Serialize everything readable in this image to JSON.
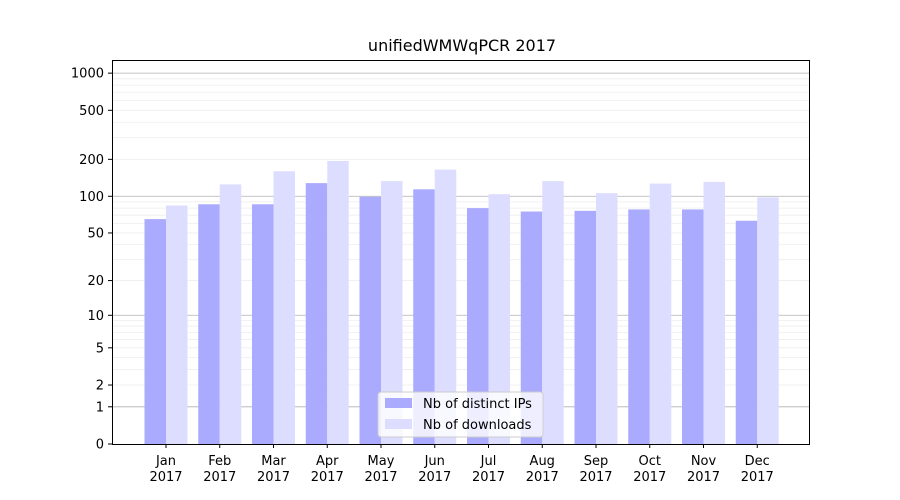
{
  "chart_data": {
    "type": "bar",
    "title": "unifiedWMWqPCR 2017",
    "xlabel": "",
    "ylabel": "",
    "y_scale": "log (value + 1)",
    "ylim": [
      0,
      1200
    ],
    "y_ticks": [
      0,
      1,
      2,
      5,
      10,
      20,
      50,
      100,
      200,
      500,
      1000
    ],
    "grid": true,
    "legend_position": "bottom-center",
    "categories": [
      {
        "month": "Jan",
        "year": "2017"
      },
      {
        "month": "Feb",
        "year": "2017"
      },
      {
        "month": "Mar",
        "year": "2017"
      },
      {
        "month": "Apr",
        "year": "2017"
      },
      {
        "month": "May",
        "year": "2017"
      },
      {
        "month": "Jun",
        "year": "2017"
      },
      {
        "month": "Jul",
        "year": "2017"
      },
      {
        "month": "Aug",
        "year": "2017"
      },
      {
        "month": "Sep",
        "year": "2017"
      },
      {
        "month": "Oct",
        "year": "2017"
      },
      {
        "month": "Nov",
        "year": "2017"
      },
      {
        "month": "Dec",
        "year": "2017"
      }
    ],
    "series": [
      {
        "name": "Nb of distinct IPs",
        "color": "#aaaaff",
        "values": [
          65,
          86,
          86,
          128,
          99,
          114,
          80,
          75,
          76,
          78,
          78,
          63
        ]
      },
      {
        "name": "Nb of downloads",
        "color": "#ddddff",
        "values": [
          84,
          125,
          160,
          194,
          133,
          165,
          104,
          133,
          106,
          127,
          131,
          98
        ]
      }
    ]
  }
}
